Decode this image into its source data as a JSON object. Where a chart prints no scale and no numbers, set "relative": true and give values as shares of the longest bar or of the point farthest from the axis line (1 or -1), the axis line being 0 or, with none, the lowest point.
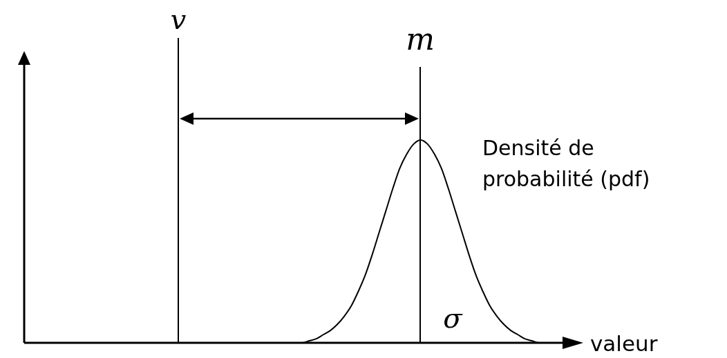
{
  "chart_data": {
    "type": "line",
    "relative": true,
    "xlabel": "valeur",
    "categories": [
      null,
      null,
      null,
      null,
      null,
      null,
      null,
      null,
      null,
      null,
      null,
      null,
      null,
      null,
      null,
      null,
      null,
      null,
      null,
      null,
      null,
      null,
      null,
      null,
      null,
      null,
      null,
      null,
      null,
      null,
      null,
      null,
      null,
      null,
      null,
      null,
      null,
      null,
      null,
      null,
      null,
      null,
      null,
      null,
      null,
      null,
      null,
      null,
      null,
      null,
      null,
      null,
      null,
      null,
      null,
      null,
      null,
      null,
      null,
      null,
      null,
      null,
      null,
      null,
      null,
      null,
      null,
      null,
      null,
      null,
      null,
      null,
      null,
      null,
      null,
      null,
      null,
      null,
      null,
      null
    ],
    "series": [
      {
        "name": "Densité de probabilité (pdf)",
        "color": "#000000",
        "values": [
          0,
          0,
          0,
          0,
          0,
          0,
          0,
          0,
          0,
          0,
          0,
          0,
          0,
          0,
          0,
          0,
          0,
          0,
          0,
          0,
          0,
          0,
          0,
          0,
          0,
          0,
          0,
          0,
          0,
          0,
          0,
          0,
          0,
          0,
          0,
          0,
          0,
          0,
          0,
          0,
          0,
          0.01,
          0.02,
          0.04,
          0.06,
          0.09,
          0.13,
          0.18,
          0.25,
          0.33,
          0.43,
          0.54,
          0.65,
          0.76,
          0.86,
          0.93,
          0.98,
          1,
          0.98,
          0.93,
          0.86,
          0.76,
          0.65,
          0.54,
          0.43,
          0.33,
          0.25,
          0.18,
          0.13,
          0.09,
          0.06,
          0.04,
          0.02,
          0.01,
          0,
          0,
          0,
          0,
          0,
          0
        ]
      }
    ],
    "annotations": [
      "v",
      "m",
      "σ"
    ]
  }
}
